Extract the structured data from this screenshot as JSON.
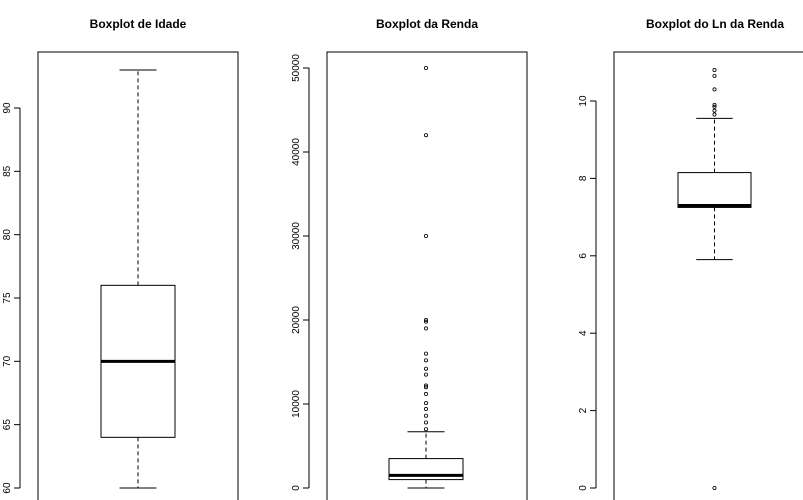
{
  "chart_data": [
    {
      "type": "boxplot",
      "title": "Boxplot de Idade",
      "ylim": [
        60,
        95
      ],
      "yticks": [
        60,
        65,
        70,
        75,
        80,
        85,
        90
      ],
      "box": {
        "whisker_low": 60,
        "q1": 64,
        "median": 70,
        "q3": 76,
        "whisker_high": 93
      },
      "outliers": []
    },
    {
      "type": "boxplot",
      "title": "Boxplot da Renda",
      "ylim": [
        0,
        52000
      ],
      "yticks": [
        0,
        10000,
        20000,
        30000,
        40000,
        50000
      ],
      "box": {
        "whisker_low": 0,
        "q1": 1000,
        "median": 1500,
        "q3": 3500,
        "whisker_high": 6700
      },
      "outliers": [
        7000,
        7800,
        8600,
        9400,
        10100,
        11200,
        12000,
        12200,
        13500,
        14200,
        15200,
        16000,
        19000,
        19800,
        20000,
        30000,
        42000,
        50000
      ]
    },
    {
      "type": "boxplot",
      "title": "Boxplot do Ln da Renda",
      "ylim": [
        0,
        11.3
      ],
      "yticks": [
        0,
        2,
        4,
        6,
        8,
        10
      ],
      "box": {
        "whisker_low": 5.9,
        "q1": 7.25,
        "median": 7.3,
        "q3": 8.15,
        "whisker_high": 9.55
      },
      "outliers": [
        0,
        9.65,
        9.75,
        9.85,
        9.9,
        10.3,
        10.65,
        10.8
      ]
    }
  ]
}
